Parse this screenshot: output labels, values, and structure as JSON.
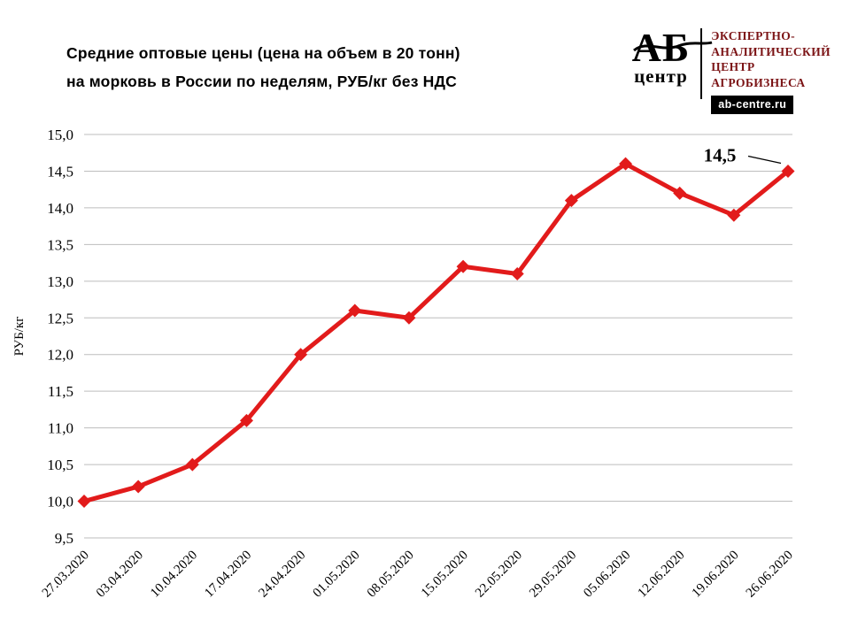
{
  "header": {
    "title_line1": "Средние оптовые цены (цена на объем в 20 тонн)",
    "title_line2": "на морковь в России по неделям, РУБ/кг без НДС"
  },
  "logo": {
    "ab": "АБ",
    "centre": "центр",
    "org_line1": "ЭКСПЕРТНО-",
    "org_line2": "АНАЛИТИЧЕСКИЙ",
    "org_line3": "ЦЕНТР",
    "org_line4": "АГРОБИЗНЕСА",
    "site": "ab-centre.ru"
  },
  "chart_data": {
    "type": "line",
    "title": "Средние оптовые цены (цена на объем в 20 тонн) на морковь в России по неделям, РУБ/кг без НДС",
    "xlabel": "",
    "ylabel": "РУБ/кг",
    "categories": [
      "27.03.2020",
      "03.04.2020",
      "10.04.2020",
      "17.04.2020",
      "24.04.2020",
      "01.05.2020",
      "08.05.2020",
      "15.05.2020",
      "22.05.2020",
      "29.05.2020",
      "05.06.2020",
      "12.06.2020",
      "19.06.2020",
      "26.06.2020"
    ],
    "values": [
      10.0,
      10.2,
      10.5,
      11.1,
      12.0,
      12.6,
      12.5,
      13.2,
      13.1,
      14.1,
      14.6,
      14.2,
      13.9,
      14.5
    ],
    "ylim": [
      9.5,
      15.0
    ],
    "ytick_step": 0.5,
    "grid": true,
    "legend": "none",
    "line_color": "#e21b1b",
    "grid_color": "#bdbdbd",
    "annotation": {
      "text": "14,5",
      "index": 13
    }
  }
}
